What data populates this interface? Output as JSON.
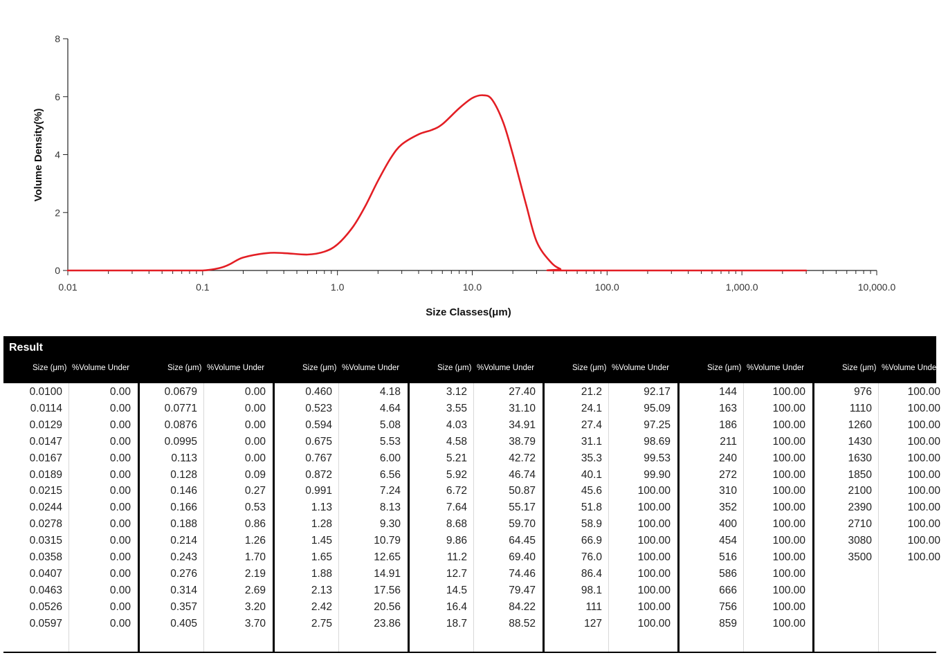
{
  "chart_data": {
    "type": "line",
    "title": "",
    "xlabel": "Size Classes(μm)",
    "ylabel": "Volume Density(%)",
    "x_scale": "log",
    "xlim": [
      0.01,
      10000
    ],
    "ylim": [
      0,
      8
    ],
    "x_ticks": [
      "0.01",
      "0.1",
      "1.0",
      "10.0",
      "100.0",
      "1,000.0",
      "10,000.0"
    ],
    "y_ticks": [
      "0",
      "2",
      "4",
      "6",
      "8"
    ],
    "line_color": "#e31e24",
    "series": [
      {
        "x": [
          0.01,
          0.1,
          0.2,
          0.3,
          0.4,
          0.6,
          0.8,
          1.0,
          1.3,
          1.6,
          2.0,
          2.5,
          3.0,
          4.0,
          5.0,
          6.0,
          8.0,
          10.0,
          12.0,
          14.0,
          17.0,
          20.0,
          25.0,
          30.0,
          38.0,
          45.0,
          50.0,
          3000.0
        ],
        "y": [
          0.0,
          0.0,
          0.45,
          0.6,
          0.6,
          0.55,
          0.65,
          0.9,
          1.5,
          2.2,
          3.1,
          3.9,
          4.35,
          4.7,
          4.85,
          5.05,
          5.6,
          5.95,
          6.05,
          5.9,
          5.1,
          4.0,
          2.3,
          1.0,
          0.3,
          0.05,
          0.0,
          0.0
        ]
      }
    ]
  },
  "result": {
    "title": "Result",
    "size_header": "Size (μm)",
    "volume_header": "%Volume Under",
    "columns": [
      {
        "sizes": [
          "0.0100",
          "0.0114",
          "0.0129",
          "0.0147",
          "0.0167",
          "0.0189",
          "0.0215",
          "0.0244",
          "0.0278",
          "0.0315",
          "0.0358",
          "0.0407",
          "0.0463",
          "0.0526",
          "0.0597"
        ],
        "volumes": [
          "0.00",
          "0.00",
          "0.00",
          "0.00",
          "0.00",
          "0.00",
          "0.00",
          "0.00",
          "0.00",
          "0.00",
          "0.00",
          "0.00",
          "0.00",
          "0.00",
          "0.00"
        ]
      },
      {
        "sizes": [
          "0.0679",
          "0.0771",
          "0.0876",
          "0.0995",
          "0.113",
          "0.128",
          "0.146",
          "0.166",
          "0.188",
          "0.214",
          "0.243",
          "0.276",
          "0.314",
          "0.357",
          "0.405"
        ],
        "volumes": [
          "0.00",
          "0.00",
          "0.00",
          "0.00",
          "0.00",
          "0.09",
          "0.27",
          "0.53",
          "0.86",
          "1.26",
          "1.70",
          "2.19",
          "2.69",
          "3.20",
          "3.70"
        ]
      },
      {
        "sizes": [
          "0.460",
          "0.523",
          "0.594",
          "0.675",
          "0.767",
          "0.872",
          "0.991",
          "1.13",
          "1.28",
          "1.45",
          "1.65",
          "1.88",
          "2.13",
          "2.42",
          "2.75"
        ],
        "volumes": [
          "4.18",
          "4.64",
          "5.08",
          "5.53",
          "6.00",
          "6.56",
          "7.24",
          "8.13",
          "9.30",
          "10.79",
          "12.65",
          "14.91",
          "17.56",
          "20.56",
          "23.86"
        ]
      },
      {
        "sizes": [
          "3.12",
          "3.55",
          "4.03",
          "4.58",
          "5.21",
          "5.92",
          "6.72",
          "7.64",
          "8.68",
          "9.86",
          "11.2",
          "12.7",
          "14.5",
          "16.4",
          "18.7"
        ],
        "volumes": [
          "27.40",
          "31.10",
          "34.91",
          "38.79",
          "42.72",
          "46.74",
          "50.87",
          "55.17",
          "59.70",
          "64.45",
          "69.40",
          "74.46",
          "79.47",
          "84.22",
          "88.52"
        ]
      },
      {
        "sizes": [
          "21.2",
          "24.1",
          "27.4",
          "31.1",
          "35.3",
          "40.1",
          "45.6",
          "51.8",
          "58.9",
          "66.9",
          "76.0",
          "86.4",
          "98.1",
          "111",
          "127"
        ],
        "volumes": [
          "92.17",
          "95.09",
          "97.25",
          "98.69",
          "99.53",
          "99.90",
          "100.00",
          "100.00",
          "100.00",
          "100.00",
          "100.00",
          "100.00",
          "100.00",
          "100.00",
          "100.00"
        ]
      },
      {
        "sizes": [
          "144",
          "163",
          "186",
          "211",
          "240",
          "272",
          "310",
          "352",
          "400",
          "454",
          "516",
          "586",
          "666",
          "756",
          "859"
        ],
        "volumes": [
          "100.00",
          "100.00",
          "100.00",
          "100.00",
          "100.00",
          "100.00",
          "100.00",
          "100.00",
          "100.00",
          "100.00",
          "100.00",
          "100.00",
          "100.00",
          "100.00",
          "100.00"
        ]
      },
      {
        "sizes": [
          "976",
          "1110",
          "1260",
          "1430",
          "1630",
          "1850",
          "2100",
          "2390",
          "2710",
          "3080",
          "3500"
        ],
        "volumes": [
          "100.00",
          "100.00",
          "100.00",
          "100.00",
          "100.00",
          "100.00",
          "100.00",
          "100.00",
          "100.00",
          "100.00",
          "100.00"
        ]
      }
    ]
  }
}
